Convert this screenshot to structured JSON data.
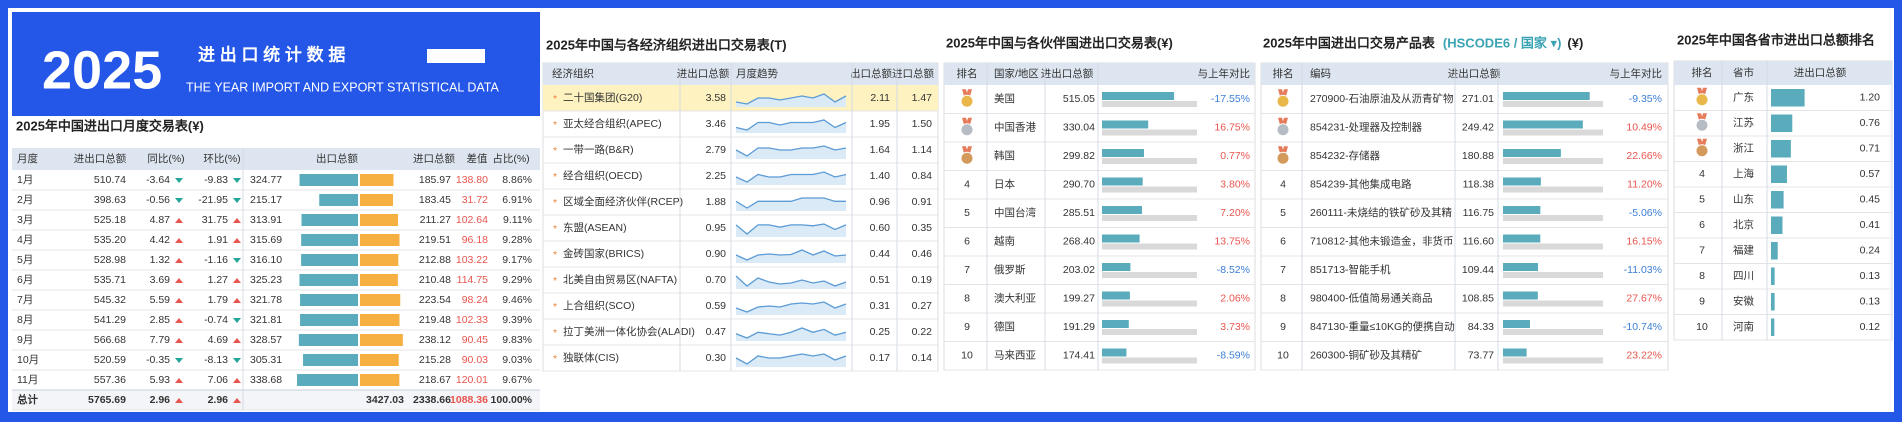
{
  "header": {
    "year": "2025",
    "title": "进 出 口 统 计 数 据",
    "subtitle": "THE YEAR IMPORT AND EXPORT STATISTICAL DATA"
  },
  "monthly": {
    "title": "2025年中国进出口月度交易表(¥)",
    "columns": [
      "月度",
      "进出口总额",
      "同比(%)",
      "环比(%)",
      "出口总额",
      "进口总额",
      "差值",
      "占比(%)"
    ],
    "rows": [
      [
        "1月",
        "510.74",
        "-3.64",
        "-9.83",
        "324.77",
        "185.97",
        "138.80",
        "8.86%"
      ],
      [
        "2月",
        "398.63",
        "-0.56",
        "-21.95",
        "215.17",
        "183.45",
        "31.72",
        "6.91%"
      ],
      [
        "3月",
        "525.18",
        "4.87",
        "31.75",
        "313.91",
        "211.27",
        "102.64",
        "9.11%"
      ],
      [
        "4月",
        "535.20",
        "4.42",
        "1.91",
        "315.69",
        "219.51",
        "96.18",
        "9.28%"
      ],
      [
        "5月",
        "528.98",
        "1.32",
        "-1.16",
        "316.10",
        "212.88",
        "103.22",
        "9.17%"
      ],
      [
        "6月",
        "535.71",
        "3.69",
        "1.27",
        "325.23",
        "210.48",
        "114.75",
        "9.29%"
      ],
      [
        "7月",
        "545.32",
        "5.59",
        "1.79",
        "321.78",
        "223.54",
        "98.24",
        "9.46%"
      ],
      [
        "8月",
        "541.29",
        "2.85",
        "-0.74",
        "321.81",
        "219.48",
        "102.33",
        "9.39%"
      ],
      [
        "9月",
        "566.68",
        "7.79",
        "4.69",
        "328.57",
        "238.12",
        "90.45",
        "9.83%"
      ],
      [
        "10月",
        "520.59",
        "-0.35",
        "-8.13",
        "305.31",
        "215.28",
        "90.03",
        "9.03%"
      ],
      [
        "11月",
        "557.36",
        "5.93",
        "7.06",
        "338.68",
        "218.67",
        "120.01",
        "9.67%"
      ]
    ],
    "total": [
      "总计",
      "5765.69",
      "2.96",
      "2.96",
      "3427.03",
      "2338.66",
      "1088.36",
      "100.00%"
    ]
  },
  "orgs": {
    "title": "2025年中国与各经济组织进出口交易表(T)",
    "columns": [
      "经济组织",
      "进出口总额",
      "月度趋势",
      "出口总额",
      "进口总额"
    ],
    "marker": "*",
    "rows": [
      {
        "name": "二十国集团(G20)",
        "total": "3.58",
        "export": "2.11",
        "import": "1.47",
        "trend": [
          0.31,
          0.3,
          0.33,
          0.33,
          0.32,
          0.33,
          0.34,
          0.33,
          0.35,
          0.31,
          0.34
        ]
      },
      {
        "name": "亚太经合组织(APEC)",
        "total": "3.46",
        "export": "1.95",
        "import": "1.50",
        "trend": [
          0.3,
          0.29,
          0.32,
          0.32,
          0.31,
          0.32,
          0.32,
          0.32,
          0.33,
          0.3,
          0.32
        ]
      },
      {
        "name": "一带一路(B&R)",
        "total": "2.79",
        "export": "1.64",
        "import": "1.14",
        "trend": [
          0.25,
          0.22,
          0.26,
          0.26,
          0.25,
          0.25,
          0.26,
          0.26,
          0.27,
          0.25,
          0.26
        ]
      },
      {
        "name": "经合组织(OECD)",
        "total": "2.25",
        "export": "1.40",
        "import": "0.84",
        "trend": [
          0.2,
          0.18,
          0.21,
          0.2,
          0.2,
          0.21,
          0.21,
          0.21,
          0.22,
          0.2,
          0.21
        ]
      },
      {
        "name": "区域全面经济伙伴(RCEP)",
        "total": "1.88",
        "export": "0.96",
        "import": "0.91",
        "trend": [
          0.17,
          0.15,
          0.17,
          0.17,
          0.17,
          0.17,
          0.18,
          0.18,
          0.18,
          0.17,
          0.17
        ]
      },
      {
        "name": "东盟(ASEAN)",
        "total": "0.95",
        "export": "0.60",
        "import": "0.35",
        "trend": [
          0.09,
          0.07,
          0.09,
          0.09,
          0.085,
          0.09,
          0.09,
          0.088,
          0.092,
          0.08,
          0.09
        ]
      },
      {
        "name": "金砖国家(BRICS)",
        "total": "0.90",
        "export": "0.44",
        "import": "0.46",
        "trend": [
          0.08,
          0.07,
          0.08,
          0.082,
          0.08,
          0.081,
          0.09,
          0.08,
          0.088,
          0.078,
          0.08
        ]
      },
      {
        "name": "北美自由贸易区(NAFTA)",
        "total": "0.70",
        "export": "0.51",
        "import": "0.19",
        "trend": [
          0.07,
          0.06,
          0.068,
          0.064,
          0.062,
          0.063,
          0.066,
          0.063,
          0.065,
          0.06,
          0.064
        ]
      },
      {
        "name": "上合组织(SCO)",
        "total": "0.59",
        "export": "0.31",
        "import": "0.27",
        "trend": [
          0.052,
          0.048,
          0.053,
          0.054,
          0.053,
          0.056,
          0.057,
          0.056,
          0.058,
          0.052,
          0.056
        ]
      },
      {
        "name": "拉丁美洲一体化协会(ALADI)",
        "total": "0.47",
        "export": "0.25",
        "import": "0.22",
        "trend": [
          0.042,
          0.039,
          0.043,
          0.042,
          0.041,
          0.043,
          0.046,
          0.043,
          0.045,
          0.041,
          0.043
        ]
      },
      {
        "name": "独联体(CIS)",
        "total": "0.30",
        "export": "0.17",
        "import": "0.14",
        "trend": [
          0.027,
          0.024,
          0.028,
          0.027,
          0.027,
          0.028,
          0.029,
          0.028,
          0.029,
          0.026,
          0.028
        ]
      }
    ]
  },
  "partners": {
    "title": "2025年中国与各伙伴国进出口交易表(¥)",
    "columns": [
      "排名",
      "国家/地区",
      "进出口总额",
      "与上年对比"
    ],
    "rows": [
      {
        "rank": null,
        "name": "美国",
        "total": "515.05",
        "change": "-17.55%"
      },
      {
        "rank": null,
        "name": "中国香港",
        "total": "330.04",
        "change": "16.75%"
      },
      {
        "rank": null,
        "name": "韩国",
        "total": "299.82",
        "change": "0.77%"
      },
      {
        "rank": "4",
        "name": "日本",
        "total": "290.70",
        "change": "3.80%"
      },
      {
        "rank": "5",
        "name": "中国台湾",
        "total": "285.51",
        "change": "7.20%"
      },
      {
        "rank": "6",
        "name": "越南",
        "total": "268.40",
        "change": "13.75%"
      },
      {
        "rank": "7",
        "name": "俄罗斯",
        "total": "203.02",
        "change": "-8.52%"
      },
      {
        "rank": "8",
        "name": "澳大利亚",
        "total": "199.27",
        "change": "2.06%"
      },
      {
        "rank": "9",
        "name": "德国",
        "total": "191.29",
        "change": "3.73%"
      },
      {
        "rank": "10",
        "name": "马来西亚",
        "total": "174.41",
        "change": "-8.59%"
      }
    ]
  },
  "products": {
    "title": "2025年中国进出口交易产品表",
    "selector": "(HSCODE6 / 国家 ▾)",
    "unit": "(¥)",
    "columns": [
      "排名",
      "编码",
      "进出口总额",
      "与上年对比"
    ],
    "rows": [
      {
        "rank": null,
        "name": "270900-石油原油及从沥青矿物",
        "total": "271.01",
        "change": "-9.35%"
      },
      {
        "rank": null,
        "name": "854231-处理器及控制器",
        "total": "249.42",
        "change": "10.49%"
      },
      {
        "rank": null,
        "name": "854232-存储器",
        "total": "180.88",
        "change": "22.66%"
      },
      {
        "rank": "4",
        "name": "854239-其他集成电路",
        "total": "118.38",
        "change": "11.20%"
      },
      {
        "rank": "5",
        "name": "260111-未烧结的铁矿砂及其精",
        "total": "116.75",
        "change": "-5.06%"
      },
      {
        "rank": "6",
        "name": "710812-其他未锻造金，非货币",
        "total": "116.60",
        "change": "16.15%"
      },
      {
        "rank": "7",
        "name": "851713-智能手机",
        "total": "109.44",
        "change": "-11.03%"
      },
      {
        "rank": "8",
        "name": "980400-低值简易通关商品",
        "total": "108.85",
        "change": "27.67%"
      },
      {
        "rank": "9",
        "name": "847130-重量≤10KG的便携自动",
        "total": "84.33",
        "change": "-10.74%"
      },
      {
        "rank": "10",
        "name": "260300-铜矿砂及其精矿",
        "total": "73.77",
        "change": "23.22%"
      }
    ]
  },
  "provinces": {
    "title": "2025年中国各省市进出口总额排名",
    "columns": [
      "排名",
      "省市",
      "进出口总额"
    ],
    "rows": [
      {
        "rank": null,
        "name": "广东",
        "total": "1.20"
      },
      {
        "rank": null,
        "name": "江苏",
        "total": "0.76"
      },
      {
        "rank": null,
        "name": "浙江",
        "total": "0.71"
      },
      {
        "rank": "4",
        "name": "上海",
        "total": "0.57"
      },
      {
        "rank": "5",
        "name": "山东",
        "total": "0.45"
      },
      {
        "rank": "6",
        "name": "北京",
        "total": "0.41"
      },
      {
        "rank": "7",
        "name": "福建",
        "total": "0.24"
      },
      {
        "rank": "8",
        "name": "四川",
        "total": "0.13"
      },
      {
        "rank": "9",
        "name": "安徽",
        "total": "0.13"
      },
      {
        "rank": "10",
        "name": "河南",
        "total": "0.12"
      }
    ]
  }
}
